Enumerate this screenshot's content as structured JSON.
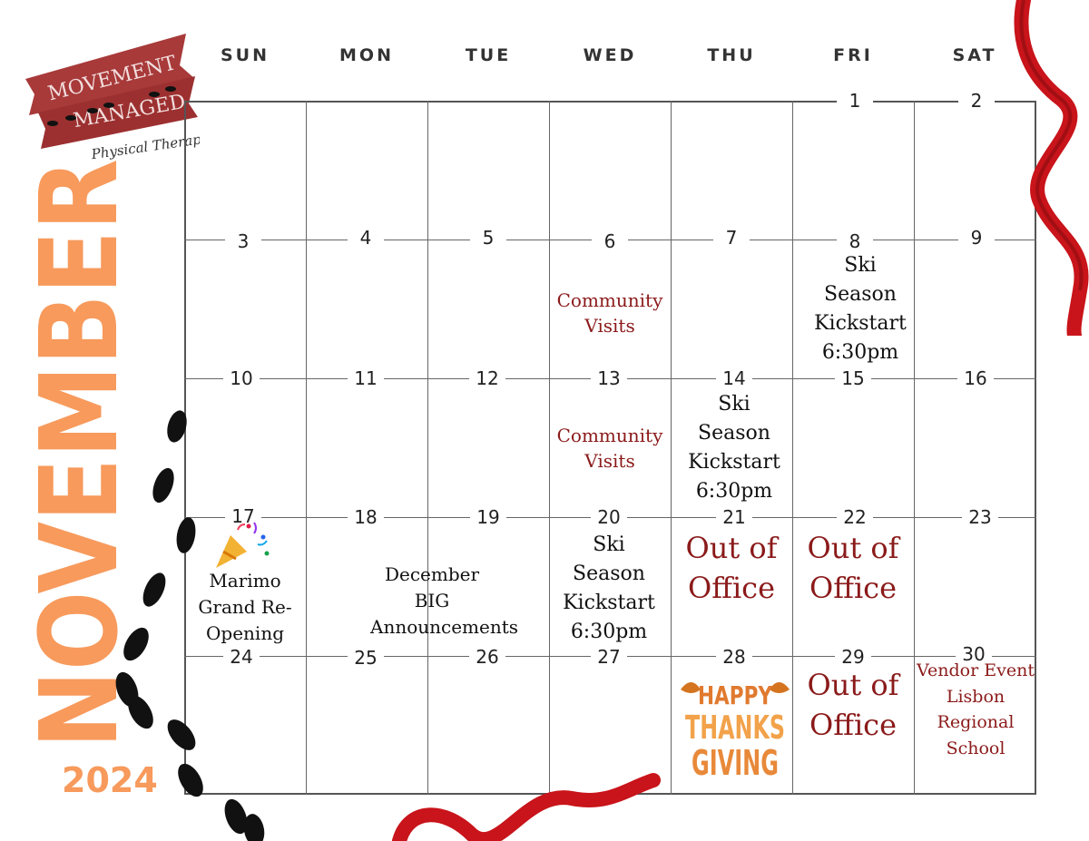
{
  "brand": {
    "line1": "MOVEMENT",
    "line2": "MANAGED",
    "tagline": "Physical Therapy",
    "color": "#a83a3a"
  },
  "month": "NOVEMBER",
  "year": "2024",
  "accent": "#f79a5c",
  "day_names": [
    "SUN",
    "MON",
    "TUE",
    "WED",
    "THU",
    "FRI",
    "SAT"
  ],
  "dates": [
    "1",
    "2",
    "3",
    "4",
    "5",
    "6",
    "7",
    "8",
    "9",
    "10",
    "11",
    "12",
    "13",
    "14",
    "15",
    "16",
    "17",
    "18",
    "19",
    "20",
    "21",
    "22",
    "23",
    "24",
    "25",
    "26",
    "27",
    "28",
    "29",
    "30"
  ],
  "events": {
    "ski_1": "Ski Season Kickstart 6:30pm",
    "ski_2": "Ski Season Kickstart 6:30pm",
    "ski_3": "Ski Season Kickstart 6:30pm",
    "community_1": "Community Visits",
    "community_2": "Community Visits",
    "marimo": "Marimo Grand Re-Opening",
    "december": "December BIG Announcements",
    "out_1": "Out of Office",
    "out_2": "Out of Office",
    "out_3": "Out of Office",
    "thanksgiving": [
      "HAPPY",
      "THANKS",
      "GIVING"
    ],
    "vendor": "Vendor Event Lisbon Regional School"
  },
  "icons": [
    "party-popper-icon",
    "footprints-icon",
    "ribbon-icon"
  ]
}
